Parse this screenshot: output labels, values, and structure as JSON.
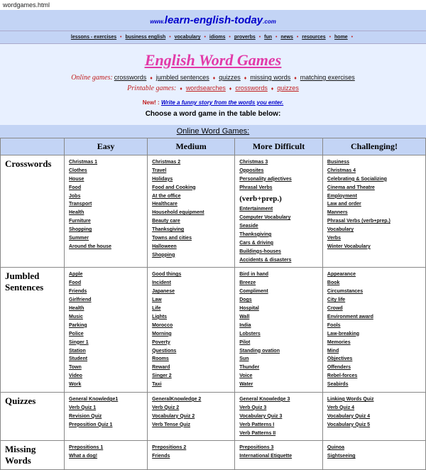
{
  "url_text": "wordgames.html",
  "banner": {
    "www": "www.",
    "brand": "learn-english-today",
    "com": ".com"
  },
  "nav": [
    "lessons - exercises",
    "business english",
    "vocabulary",
    "idioms",
    "proverbs",
    "fun",
    "news",
    "resources",
    "home"
  ],
  "title": "English Word Games",
  "online_label": "Online games:",
  "online_links": [
    "crosswords",
    "jumbled sentences",
    "quizzes",
    "missing words",
    "matching exercises"
  ],
  "printable_label": "Printable games:",
  "printable_links": [
    "wordsearches",
    "crosswords",
    "quizzes"
  ],
  "new_label": "New! :",
  "new_link": "Write a funny story from the words you enter.",
  "choose": "Choose a word game in the table below:",
  "table_header": "Online Word Games:",
  "difficulty": [
    "Easy",
    "Medium",
    "More Difficult",
    "Challenging!"
  ],
  "colors": {
    "online_label": "#c02020",
    "online_link": "#111111",
    "printable_label": "#c02020",
    "printable_link": "#c02020",
    "title": "#e23aa8"
  },
  "rows": [
    {
      "label": "Crosswords",
      "cols": [
        [
          "Christmas 1",
          "Clothes",
          "House",
          "Food",
          "Jobs",
          "Transport",
          "Health",
          "Furniture",
          "Shopping",
          "Summer",
          "Around the house"
        ],
        [
          " Christmas 2",
          "Travel",
          "Holidays",
          " Food and Cooking",
          "At the office",
          "Healthcare",
          "Household equipment",
          "Beauty care",
          "Thanksgiving",
          "Towns and cities",
          "Halloween",
          "  Shopping"
        ],
        [
          " Christmas 3",
          " Opposites",
          " Personality adjectives  ",
          " Phrasal Verbs ",
          "(verb+prep.)",
          " Entertainment",
          " Computer Vocabulary",
          "Seaside",
          "Thanksgiving",
          "Cars & driving",
          "Buildings-houses",
          "Accidents & disasters"
        ],
        [
          "Business",
          "Christmas 4",
          "Celebrating & Socializing",
          "Cinema and Theatre",
          "Employment",
          "Law and order",
          "Manners",
          " Phrasal Verbs   (verb+prep.)",
          " Vocabulary",
          "Verbs",
          " Winter Vocabulary"
        ]
      ]
    },
    {
      "label": "Jumbled Sentences",
      "cols": [
        [
          "Apple",
          " Food",
          "  Friends",
          "Girlfriend",
          "Health",
          "Music",
          "Parking",
          "Police",
          "Singer 1",
          "Station",
          "  Student",
          "  Town",
          "Video",
          "Work"
        ],
        [
          "Good things",
          "Incident",
          "Japanese",
          "Law",
          " Life",
          "Lights",
          " Morocco",
          "Morning",
          "Poverty",
          "  Questions",
          "Rooms",
          "  Reward",
          "  Singer 2",
          "  Taxi"
        ],
        [
          " Bird in hand",
          "Breeze",
          "Compliment",
          "Dogs",
          "Hospital",
          "Wall",
          "India",
          "Lobsters",
          "Pilot",
          "Standing ovation",
          "Sun",
          "  Thunder",
          "Voice",
          "  Water"
        ],
        [
          "Appearance",
          " Book",
          "Circumstances",
          "City life",
          "Crowd",
          "Environment award",
          "Fools",
          " Law-breaking",
          "Memories",
          "  Mind",
          "  Objectives",
          "Offenders",
          "Rebel-forces",
          "Seabirds"
        ]
      ]
    },
    {
      "label": "Quizzes",
      "cols": [
        [
          "General Knowledge1",
          "Verb Quiz 1",
          "Revision Quiz",
          "Preposition Quiz 1"
        ],
        [
          "  GeneralKnowledge 2",
          "  Verb Quiz 2",
          "  Vocabulary Quiz 2",
          "Verb Tense Quiz"
        ],
        [
          "  General Knowledge 3",
          " Verb Quiz 3",
          "  Vocabulary Quiz 3",
          "Verb Patterns I",
          "Verb Patterns II"
        ],
        [
          "Linking Words Quiz",
          "Verb Quiz 4",
          "Vocabulary Quiz 4",
          "Vocabulary Quiz 5"
        ]
      ]
    },
    {
      "label": "Missing Words",
      "cols": [
        [
          "Prepositions 1",
          "What a dog!"
        ],
        [
          "Prepositions 2",
          "Friends"
        ],
        [
          "Prepositions 3",
          "International Etiquette"
        ],
        [
          "  Quinoa",
          "Sightseeing"
        ]
      ]
    }
  ]
}
